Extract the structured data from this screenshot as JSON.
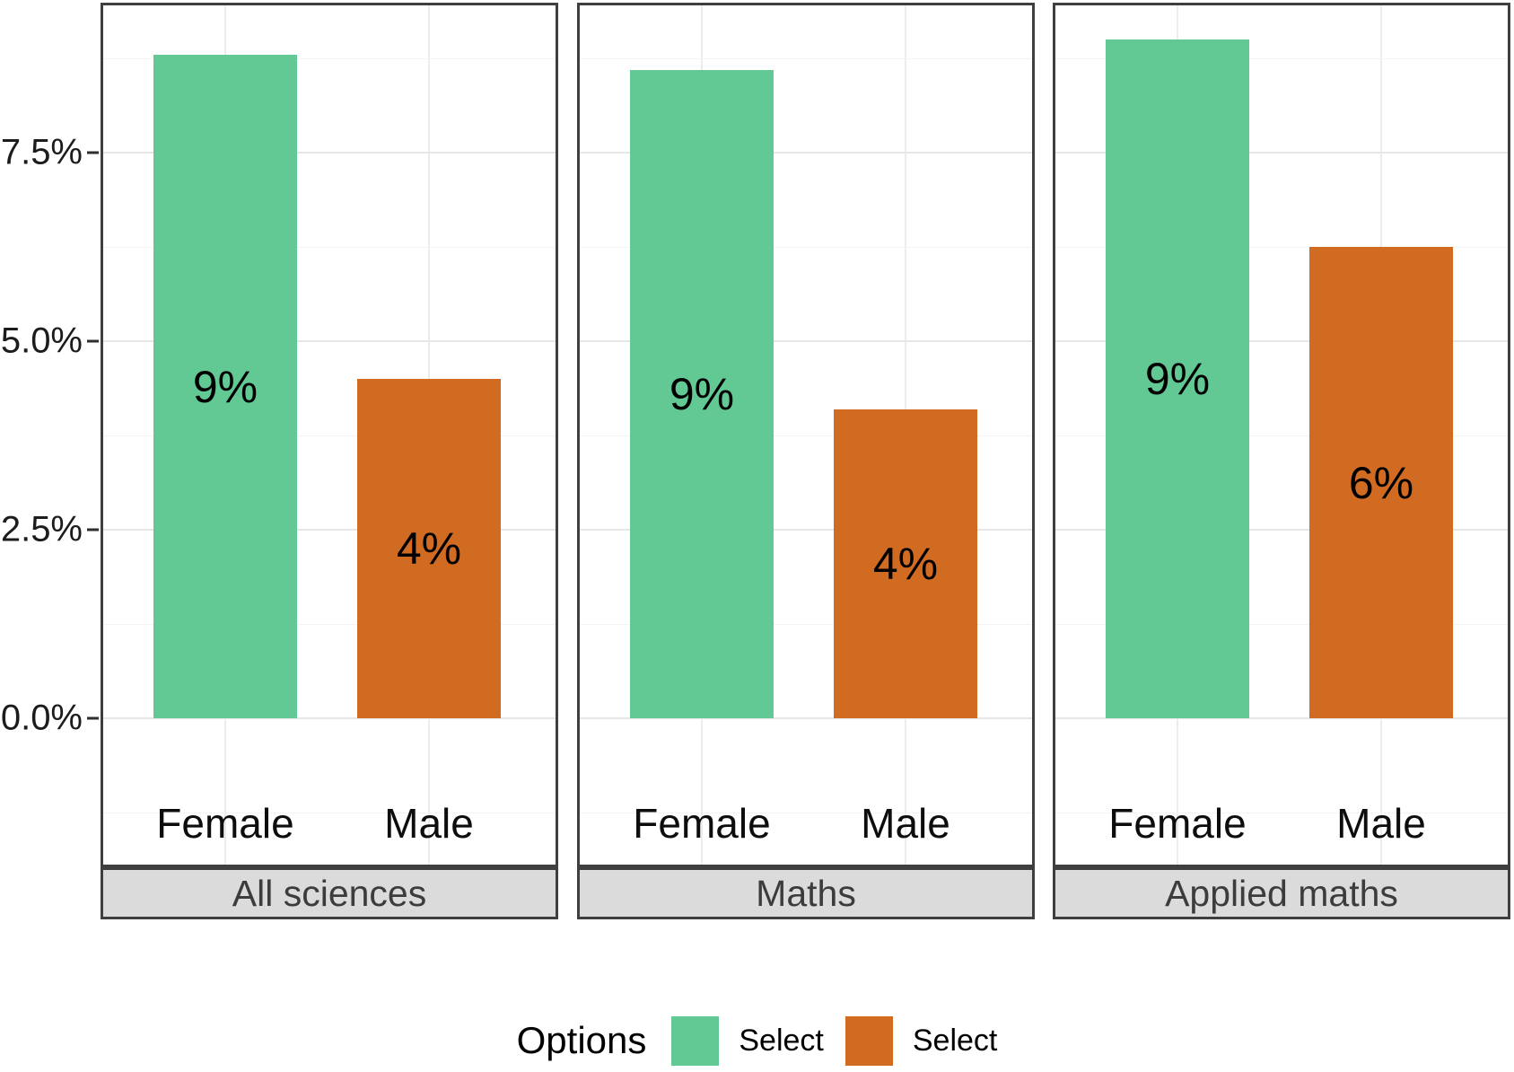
{
  "chart_data": {
    "type": "bar",
    "title": "",
    "xlabel": "",
    "ylabel": "",
    "categories": [
      "Female",
      "Male"
    ],
    "facets": [
      {
        "label": "All sciences",
        "values": [
          8.8,
          4.5
        ],
        "bar_labels": [
          "9%",
          "4%"
        ]
      },
      {
        "label": "Maths",
        "values": [
          8.6,
          4.1
        ],
        "bar_labels": [
          "9%",
          "4%"
        ]
      },
      {
        "label": "Applied maths",
        "values": [
          9.0,
          6.25
        ],
        "bar_labels": [
          "9%",
          "6%"
        ]
      }
    ],
    "series_colors": [
      "#62c994",
      "#d26b22"
    ],
    "y_axis": {
      "tick_labels": [
        "7.5%",
        "5.0%",
        "2.5%",
        "0.0%"
      ],
      "tick_values": [
        7.5,
        5.0,
        2.5,
        0.0
      ],
      "minor_tick_values": [
        8.75,
        6.25,
        3.75,
        1.25,
        -1.25
      ],
      "range": [
        -1.95,
        9.45
      ]
    },
    "grid": true,
    "legend": {
      "position": "bottom",
      "title": "Options",
      "entries": [
        {
          "label": "Select",
          "color": "#62c994"
        },
        {
          "label": "Select",
          "color": "#d26b22"
        }
      ]
    },
    "colors": {
      "panel_border": "#3f3f3f",
      "strip_background": "#dbdbdb",
      "strip_text": "#3c3c3c",
      "grid_major": "#e7e7e7",
      "grid_minor": "#f3f3f3"
    }
  }
}
